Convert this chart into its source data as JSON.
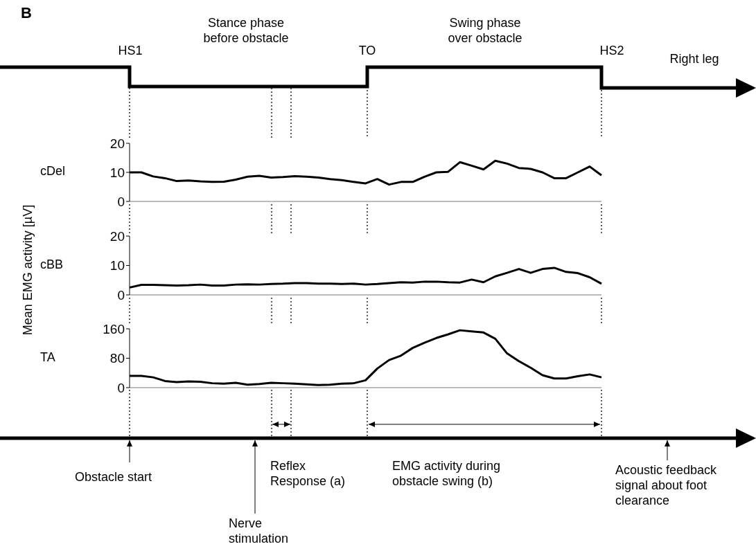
{
  "chart_data": [
    {
      "type": "line",
      "title": "B",
      "ylabel": "cDel",
      "tick_labels": "y",
      "categories": [
        null,
        null,
        null,
        null,
        null,
        null,
        null,
        null,
        null,
        null,
        null,
        null,
        null,
        null,
        null,
        null,
        null,
        null,
        null,
        null,
        null,
        null,
        null,
        null,
        null,
        null,
        null,
        null,
        null,
        null,
        null,
        null,
        null,
        null,
        null,
        null,
        null,
        null,
        null,
        null,
        null
      ],
      "series": [
        {
          "color": "#000000",
          "values": [
            10,
            10,
            8.6,
            8.0,
            7.0,
            7.2,
            6.9,
            6.7,
            6.8,
            7.5,
            8.5,
            8.8,
            8.2,
            8.4,
            8.7,
            8.5,
            8.2,
            7.7,
            7.3,
            6.7,
            6.2,
            7.7,
            5.8,
            6.7,
            6.7,
            8.5,
            10,
            10.2,
            13.5,
            12.3,
            11,
            14,
            13,
            11.5,
            11.2,
            10,
            8,
            8,
            10,
            12,
            9
          ]
        }
      ],
      "ylim": [
        0,
        20
      ],
      "yticks": [
        0,
        10,
        20
      ],
      "annotations": [
        "Mean EMG activity [µV]",
        "HS1",
        "Stance phase before obstacle",
        "TO",
        "Swing phase over obstacle",
        "HS2",
        "Right leg",
        "Obstacle start",
        "Nerve stimulation",
        "Reflex Response (a)",
        "EMG activity during obstacle swing (b)",
        "Acoustic feedback signal about foot clearance"
      ]
    },
    {
      "type": "line",
      "ylabel": "cBB",
      "tick_labels": "y",
      "categories": [
        null,
        null,
        null,
        null,
        null,
        null,
        null,
        null,
        null,
        null,
        null,
        null,
        null,
        null,
        null,
        null,
        null,
        null,
        null,
        null,
        null,
        null,
        null,
        null,
        null,
        null,
        null,
        null,
        null,
        null,
        null,
        null,
        null,
        null,
        null,
        null,
        null,
        null,
        null,
        null,
        null
      ],
      "series": [
        {
          "color": "#000000",
          "values": [
            2.5,
            3.4,
            3.4,
            3.3,
            3.2,
            3.3,
            3.5,
            3.2,
            3.2,
            3.5,
            3.6,
            3.5,
            3.7,
            3.8,
            4.0,
            4.0,
            3.8,
            3.8,
            3.7,
            3.8,
            3.5,
            3.7,
            4.0,
            4.3,
            4.2,
            4.5,
            4.5,
            4.3,
            4.2,
            5.2,
            4.3,
            6.3,
            7.5,
            8.8,
            7.5,
            8.8,
            9.2,
            7.8,
            7.4,
            6,
            3.8
          ]
        }
      ],
      "ylim": [
        0,
        20
      ],
      "yticks": [
        0,
        10,
        20
      ]
    },
    {
      "type": "line",
      "ylabel": "TA",
      "tick_labels": "y",
      "categories": [
        null,
        null,
        null,
        null,
        null,
        null,
        null,
        null,
        null,
        null,
        null,
        null,
        null,
        null,
        null,
        null,
        null,
        null,
        null,
        null,
        null,
        null,
        null,
        null,
        null,
        null,
        null,
        null,
        null,
        null,
        null,
        null,
        null,
        null,
        null,
        null,
        null,
        null,
        null,
        null,
        null
      ],
      "series": [
        {
          "color": "#000000",
          "values": [
            32,
            32,
            28,
            18,
            15,
            17,
            16,
            12,
            11,
            13,
            8,
            10,
            13,
            12,
            11,
            9,
            7,
            8,
            11,
            12,
            20,
            52,
            75,
            87,
            108,
            122,
            135,
            145,
            156,
            153,
            150,
            133,
            93,
            72,
            54,
            34,
            25,
            25,
            31,
            36,
            28
          ]
        }
      ],
      "ylim": [
        0,
        160
      ],
      "yticks": [
        0,
        80,
        160
      ]
    }
  ]
}
